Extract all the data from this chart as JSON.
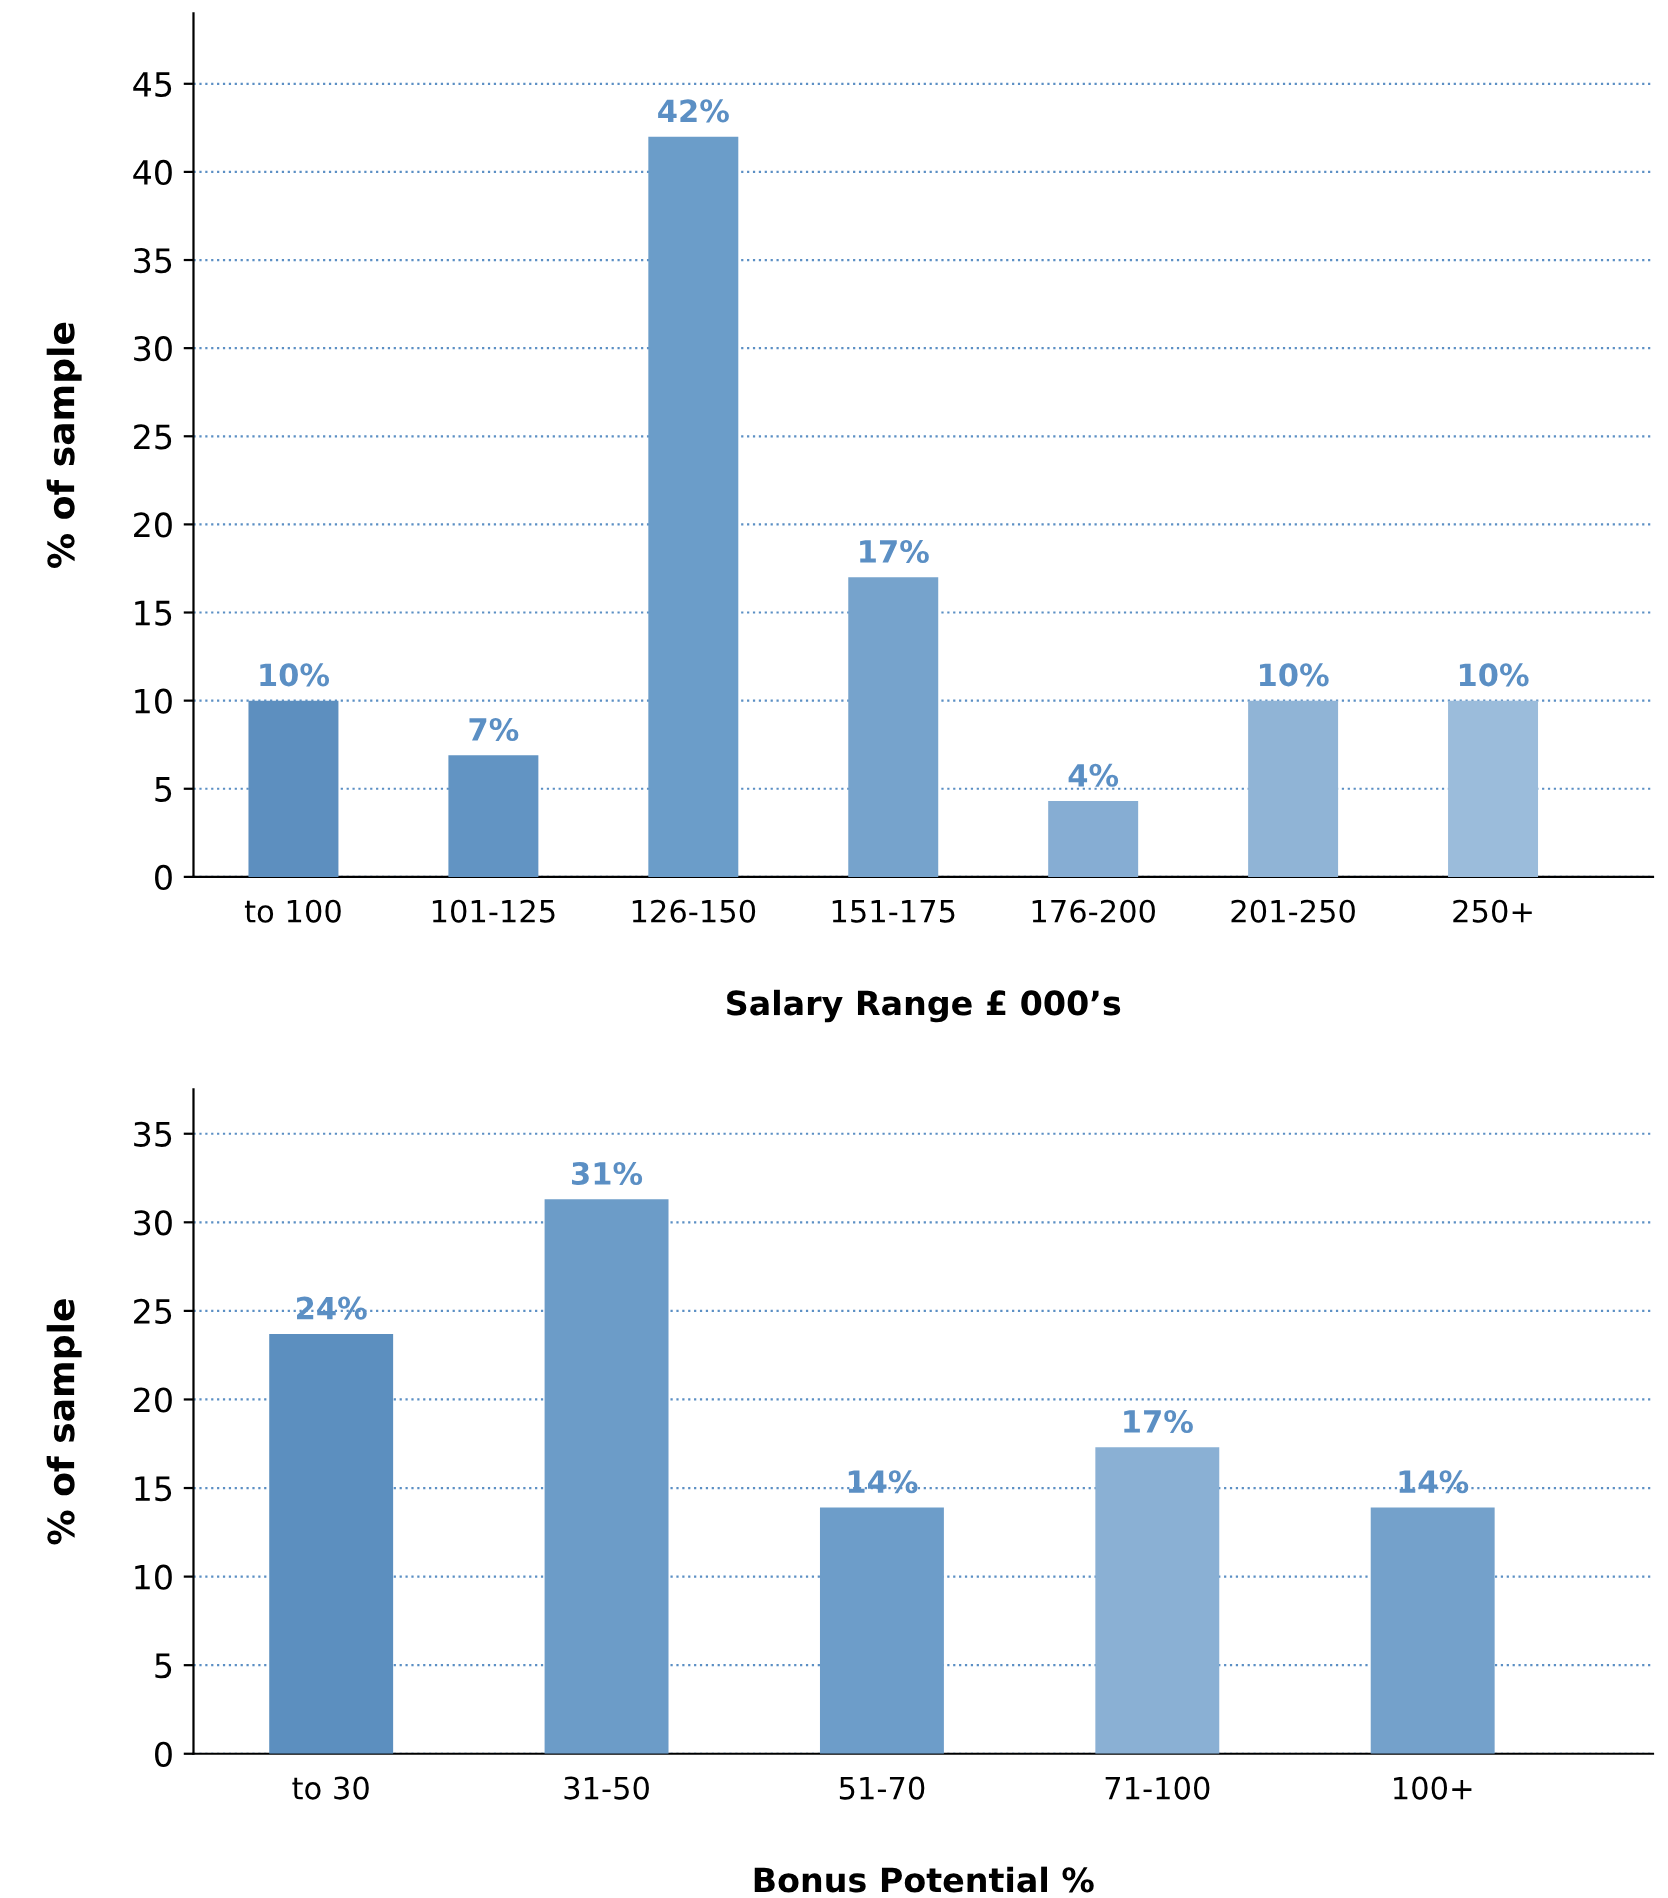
{
  "chart_data": [
    {
      "type": "bar",
      "xlabel": "Salary Range £ 000’s",
      "ylabel": "% of sample",
      "categories": [
        "to 100",
        "101-125",
        "126-150",
        "151-175",
        "176-200",
        "201-250",
        "250+"
      ],
      "values": [
        10,
        6.9,
        42,
        17,
        4.3,
        10,
        10
      ],
      "value_labels": [
        "10%",
        "7%",
        "42%",
        "17%",
        "4%",
        "10%",
        "10%"
      ],
      "colors": [
        "#5d8fbf",
        "#6294c3",
        "#6b9dc9",
        "#76a3cc",
        "#86add3",
        "#90b4d6",
        "#9bbcdb"
      ],
      "ylim": [
        0,
        49
      ],
      "yticks": [
        0,
        5,
        10,
        15,
        20,
        25,
        30,
        35,
        40,
        45
      ],
      "grid": "y",
      "legend": false
    },
    {
      "type": "bar",
      "xlabel": "Bonus Potential %",
      "ylabel": "% of sample",
      "categories": [
        "to 30",
        "31-50",
        "51-70",
        "71-100",
        "100+"
      ],
      "values": [
        23.7,
        31.3,
        13.9,
        17.3,
        13.9
      ],
      "value_labels": [
        "24%",
        "31%",
        "14%",
        "17%",
        "14%"
      ],
      "colors": [
        "#5c8fbf",
        "#6c9cc8",
        "#6d9dc9",
        "#8ab0d4",
        "#74a1cb"
      ],
      "ylim": [
        0,
        37.5
      ],
      "yticks": [
        0,
        5,
        10,
        15,
        20,
        25,
        30,
        35
      ],
      "grid": "y",
      "legend": false
    }
  ]
}
